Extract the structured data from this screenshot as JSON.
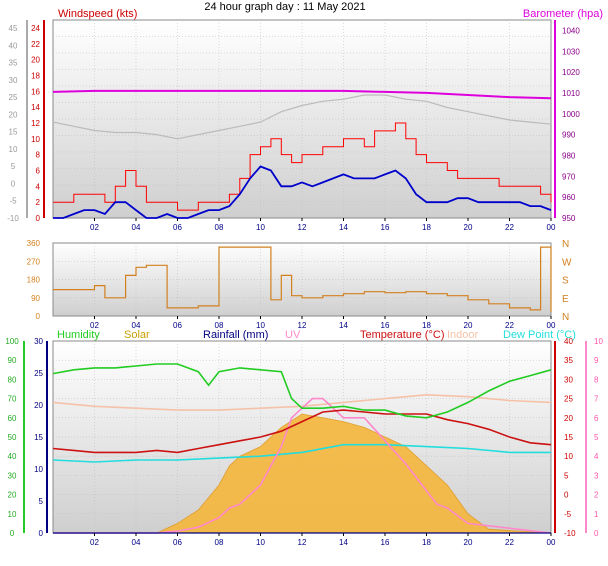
{
  "title": "24 hour graph day : 11 May 2021",
  "x_ticks": [
    "02",
    "04",
    "06",
    "08",
    "10",
    "12",
    "14",
    "16",
    "18",
    "20",
    "22",
    "00"
  ],
  "colors": {
    "wind": "#ff0000",
    "gust": "#0000cc",
    "baro": "#dd00dd",
    "grey_series": "#bbbbbb",
    "direction": "#d2801e",
    "humidity": "#22cc22",
    "solar": "#f5b63c",
    "rainfall": "#000080",
    "uv": "#ff88cc",
    "temperature": "#cc1111",
    "indoor": "#f5c2a8",
    "dew_point": "#22dddd"
  },
  "chart_data": [
    {
      "type": "line",
      "panel": "wind-baro",
      "x_range": [
        0,
        24
      ],
      "grid": true,
      "y_left_label": "Windspeed (kts)",
      "y_left_ticks": [
        24,
        22,
        20,
        18,
        16,
        14,
        12,
        10,
        8,
        6,
        4,
        2,
        0
      ],
      "y_left_range": [
        0,
        25
      ],
      "y_outer_ticks": [
        45,
        40,
        35,
        30,
        25,
        20,
        15,
        10,
        5,
        0,
        -5,
        -10
      ],
      "y_right_label": "Barometer (hpa)",
      "y_right_ticks": [
        1040,
        1030,
        1020,
        1010,
        1000,
        990,
        980,
        970,
        960,
        950
      ],
      "y_right_range": [
        950,
        1045
      ],
      "series": [
        {
          "key": "wind",
          "x": [
            0.0,
            0.5,
            1.0,
            1.5,
            2.0,
            2.5,
            3.0,
            3.5,
            4.0,
            4.5,
            5.0,
            5.5,
            6.0,
            6.5,
            7.0,
            7.5,
            8.0,
            8.5,
            9.0,
            9.5,
            10.0,
            10.5,
            11.0,
            11.5,
            12.0,
            12.5,
            13.0,
            13.5,
            14.0,
            14.5,
            15.0,
            15.5,
            16.0,
            16.5,
            17.0,
            17.5,
            18.0,
            18.5,
            19.0,
            19.5,
            20.0,
            20.5,
            21.0,
            21.5,
            22.0,
            22.5,
            23.0,
            23.5,
            24.0
          ],
          "y": [
            2,
            2,
            3,
            3,
            3,
            2,
            4,
            6,
            4,
            2,
            2,
            2,
            1,
            1,
            2,
            2,
            2,
            3,
            5,
            8,
            9,
            10,
            8,
            7,
            8,
            8,
            9,
            9,
            10,
            10,
            9,
            11,
            11,
            12,
            10,
            8,
            7,
            7,
            6,
            5,
            5,
            5,
            5,
            4,
            4,
            4,
            4,
            3,
            2
          ]
        },
        {
          "key": "gust",
          "x": [
            0.0,
            0.5,
            1.0,
            1.5,
            2.0,
            2.5,
            3.0,
            3.5,
            4.0,
            4.5,
            5.0,
            5.5,
            6.0,
            6.5,
            7.0,
            7.5,
            8.0,
            8.5,
            9.0,
            9.5,
            10.0,
            10.5,
            11.0,
            11.5,
            12.0,
            12.5,
            13.0,
            13.5,
            14.0,
            14.5,
            15.0,
            15.5,
            16.0,
            16.5,
            17.0,
            17.5,
            18.0,
            18.5,
            19.0,
            19.5,
            20.0,
            20.5,
            21.0,
            21.5,
            22.0,
            22.5,
            23.0,
            23.5,
            24.0
          ],
          "y": [
            0,
            0,
            0.5,
            1,
            1,
            0.5,
            2,
            2,
            1,
            0,
            0,
            0.5,
            0,
            0,
            0.5,
            1,
            1,
            1.5,
            3,
            5,
            6.5,
            6,
            4,
            4,
            4.5,
            4,
            4.5,
            5,
            5.5,
            5,
            5,
            5,
            5.5,
            6,
            5,
            3,
            2,
            2,
            2,
            2.5,
            2.5,
            2,
            2,
            2,
            2,
            2,
            1.5,
            1.5,
            1
          ]
        },
        {
          "key": "baro",
          "x": [
            0,
            2,
            4,
            6,
            8,
            10,
            12,
            14,
            16,
            18,
            20,
            22,
            24
          ],
          "y": [
            1010.5,
            1011,
            1011,
            1011,
            1011,
            1011,
            1011,
            1011,
            1010.5,
            1010,
            1009,
            1008,
            1007.5
          ]
        },
        {
          "key": "grey",
          "x": [
            0,
            1,
            2,
            3,
            4,
            5,
            6,
            7,
            8,
            9,
            10,
            11,
            12,
            13,
            14,
            15,
            16,
            17,
            18,
            19,
            20,
            21,
            22,
            23,
            24
          ],
          "y": [
            996,
            994,
            992,
            991,
            991,
            990,
            988,
            990,
            992,
            994,
            996,
            1001,
            1004,
            1006,
            1007,
            1009,
            1009,
            1007,
            1006,
            1003,
            1001,
            999,
            997,
            996,
            995
          ]
        }
      ]
    },
    {
      "type": "line",
      "panel": "direction",
      "x_range": [
        0,
        24
      ],
      "grid": true,
      "y_left_ticks": [
        360,
        270,
        180,
        90,
        0
      ],
      "y_left_range": [
        0,
        360
      ],
      "y_right_ticks": [
        "N",
        "W",
        "S",
        "E",
        "N"
      ],
      "series": [
        {
          "key": "direction",
          "x": [
            0,
            1,
            2,
            2.5,
            3,
            3.5,
            4,
            4.5,
            5,
            5.5,
            6,
            7,
            7.5,
            8,
            8.5,
            9,
            9.5,
            10,
            10.5,
            11,
            11.5,
            12,
            13,
            14,
            15,
            16,
            17,
            18,
            19,
            20,
            21,
            22,
            23,
            23.5,
            24
          ],
          "y": [
            130,
            130,
            150,
            90,
            90,
            200,
            240,
            250,
            250,
            40,
            40,
            50,
            50,
            340,
            340,
            340,
            340,
            340,
            80,
            200,
            100,
            90,
            100,
            110,
            120,
            115,
            120,
            110,
            100,
            80,
            60,
            40,
            30,
            340,
            20
          ]
        }
      ]
    },
    {
      "type": "line",
      "panel": "temperature-humidity",
      "x_range": [
        0,
        24
      ],
      "grid": true,
      "legend": [
        "Humidity",
        "Solar",
        "Rainfall (mm)",
        "UV",
        "Temperature (°C)",
        "Indoor",
        "Dew Point (°C)"
      ],
      "y_humidity_ticks": [
        100,
        90,
        80,
        70,
        60,
        50,
        40,
        30,
        20,
        10,
        0
      ],
      "y_rain_ticks": [
        30,
        25,
        20,
        15,
        10,
        5,
        0
      ],
      "y_temp_ticks": [
        40,
        35,
        30,
        25,
        20,
        15,
        10,
        5,
        0,
        -5,
        -10
      ],
      "y_temp_range": [
        -10,
        40
      ],
      "y_uv_ticks": [
        10,
        9,
        8,
        7,
        6,
        5,
        4,
        3,
        2,
        1,
        0
      ],
      "series": [
        {
          "key": "humidity",
          "x": [
            0,
            1,
            2,
            3,
            4,
            5,
            6,
            7,
            7.5,
            8,
            9,
            10,
            11,
            11.5,
            12,
            13,
            14,
            15,
            16,
            17,
            18,
            19,
            20,
            21,
            22,
            23,
            24
          ],
          "y": [
            83,
            85,
            86,
            86,
            87,
            88,
            88,
            84,
            77,
            84,
            86,
            85,
            84,
            70,
            65,
            65,
            66,
            64,
            64,
            61,
            60,
            63,
            68,
            74,
            79,
            82,
            85
          ]
        },
        {
          "key": "temperature",
          "x": [
            0,
            1,
            2,
            3,
            4,
            5,
            6,
            7,
            8,
            9,
            10,
            11,
            12,
            13,
            14,
            15,
            16,
            17,
            18,
            19,
            20,
            21,
            22,
            23,
            24
          ],
          "y": [
            12,
            11.5,
            11,
            11,
            11,
            11.5,
            11,
            12,
            13,
            14,
            15,
            16.5,
            19,
            21.5,
            22,
            21.5,
            21,
            21,
            21,
            19.5,
            18.5,
            17,
            15,
            13.5,
            13
          ]
        },
        {
          "key": "dew",
          "x": [
            0,
            2,
            4,
            6,
            8,
            10,
            12,
            14,
            16,
            18,
            20,
            22,
            24
          ],
          "y": [
            9,
            8.5,
            9,
            9,
            9.5,
            10,
            11,
            13,
            13,
            12.5,
            12,
            11,
            11
          ]
        },
        {
          "key": "indoor",
          "x": [
            0,
            2,
            4,
            6,
            8,
            10,
            12,
            14,
            16,
            18,
            20,
            22,
            24
          ],
          "y": [
            24,
            23,
            22.5,
            22,
            22,
            22.5,
            23,
            24,
            25,
            26,
            25.5,
            24.5,
            24
          ]
        },
        {
          "key": "uv",
          "x": [
            0,
            5,
            6,
            7,
            8,
            8.5,
            9,
            10,
            11,
            11.5,
            12,
            12.5,
            13,
            13.5,
            14,
            15,
            16,
            17,
            18,
            18.5,
            19,
            20,
            24
          ],
          "y": [
            0,
            0,
            0.1,
            0.3,
            0.8,
            1.3,
            1.5,
            2.5,
            4.5,
            6,
            6.5,
            7,
            7,
            6.5,
            6,
            6,
            4.8,
            3.6,
            2.2,
            1.5,
            1.3,
            0.5,
            0
          ]
        },
        {
          "key": "solar",
          "x": [
            0,
            5,
            6,
            7,
            8,
            8.5,
            9,
            10,
            11,
            12,
            13,
            14,
            15,
            16,
            17,
            18,
            19,
            20,
            21,
            24
          ],
          "y": [
            0,
            0,
            5,
            12,
            25,
            35,
            40,
            45,
            55,
            62,
            60,
            58,
            55,
            50,
            45,
            35,
            25,
            10,
            2,
            0
          ]
        },
        {
          "key": "rainfall",
          "x": [
            0,
            24
          ],
          "y": [
            0,
            0
          ]
        }
      ]
    }
  ]
}
